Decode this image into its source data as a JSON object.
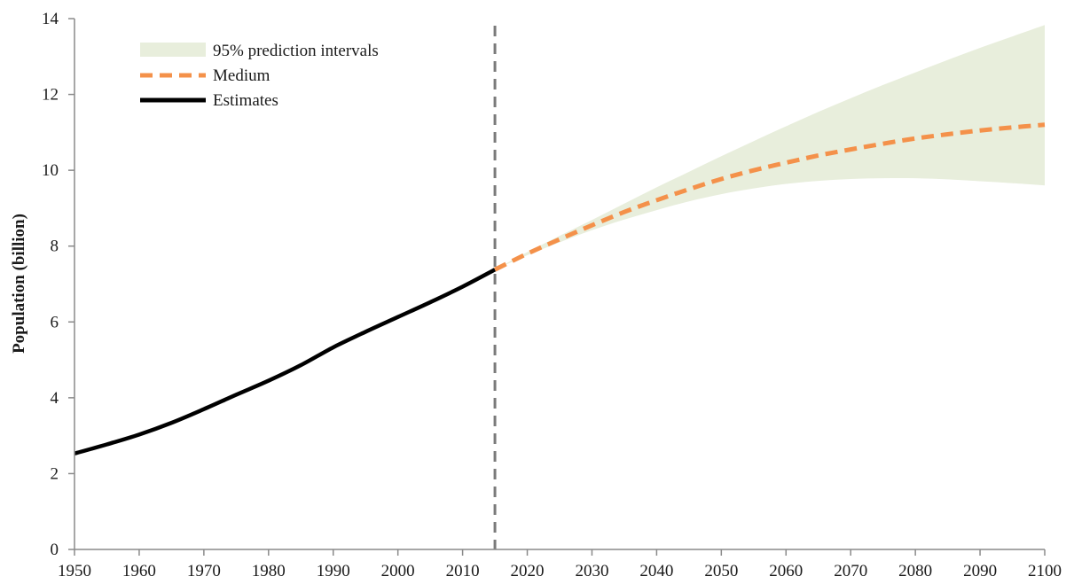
{
  "chart_data": {
    "type": "line",
    "title": "",
    "xlabel": "",
    "ylabel": "Population (billion)",
    "xlim": [
      1950,
      2100
    ],
    "ylim": [
      0,
      14
    ],
    "x_ticks": [
      1950,
      1960,
      1970,
      1980,
      1990,
      2000,
      2010,
      2020,
      2030,
      2040,
      2050,
      2060,
      2070,
      2080,
      2090,
      2100
    ],
    "y_ticks": [
      0,
      2,
      4,
      6,
      8,
      10,
      12,
      14
    ],
    "grid": false,
    "legend_placement": "top-left",
    "divider_x": 2015,
    "series": [
      {
        "name": "Estimates",
        "style": "solid",
        "color": "#000000",
        "x": [
          1950,
          1955,
          1960,
          1965,
          1970,
          1975,
          1980,
          1985,
          1990,
          1995,
          2000,
          2005,
          2010,
          2015
        ],
        "y": [
          2.53,
          2.77,
          3.03,
          3.34,
          3.7,
          4.08,
          4.45,
          4.86,
          5.33,
          5.74,
          6.13,
          6.52,
          6.93,
          7.38
        ]
      },
      {
        "name": "Medium",
        "style": "dashed",
        "color": "#f4914a",
        "x": [
          2015,
          2020,
          2025,
          2030,
          2035,
          2040,
          2045,
          2050,
          2055,
          2060,
          2065,
          2070,
          2075,
          2080,
          2085,
          2090,
          2095,
          2100
        ],
        "y": [
          7.38,
          7.8,
          8.18,
          8.55,
          8.9,
          9.21,
          9.5,
          9.77,
          10.0,
          10.2,
          10.39,
          10.55,
          10.7,
          10.84,
          10.95,
          11.05,
          11.13,
          11.2
        ]
      },
      {
        "name": "95% prediction intervals",
        "style": "band",
        "color": "#e8eedc",
        "x": [
          2015,
          2020,
          2025,
          2030,
          2035,
          2040,
          2045,
          2050,
          2055,
          2060,
          2065,
          2070,
          2075,
          2080,
          2085,
          2090,
          2095,
          2100
        ],
        "lower": [
          7.38,
          7.76,
          8.1,
          8.42,
          8.7,
          8.95,
          9.18,
          9.37,
          9.52,
          9.64,
          9.72,
          9.77,
          9.79,
          9.79,
          9.76,
          9.71,
          9.66,
          9.6
        ],
        "upper": [
          7.38,
          7.84,
          8.27,
          8.69,
          9.12,
          9.55,
          9.96,
          10.37,
          10.77,
          11.16,
          11.54,
          11.9,
          12.25,
          12.58,
          12.91,
          13.23,
          13.53,
          13.83
        ]
      }
    ],
    "legend": [
      "95% prediction intervals",
      "Medium",
      "Estimates"
    ]
  }
}
